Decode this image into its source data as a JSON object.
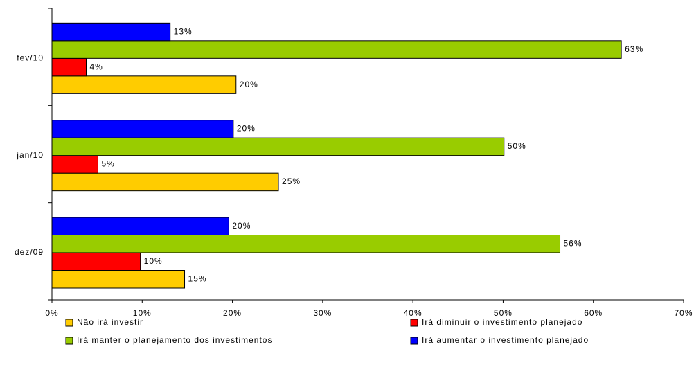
{
  "chart_data": {
    "type": "bar",
    "orientation": "horizontal",
    "categories": [
      "dez/09",
      "jan/10",
      "fev/10"
    ],
    "series": [
      {
        "name": "Não irá investir",
        "color": "#ffcc00",
        "values": [
          14.7,
          25.1,
          20.4
        ],
        "value_labels": [
          "15%",
          "25%",
          "20%"
        ]
      },
      {
        "name": "Irá diminuir o investimento planejado",
        "color": "#ff0000",
        "values": [
          9.8,
          5.1,
          3.8
        ],
        "value_labels": [
          "10%",
          "5%",
          "4%"
        ]
      },
      {
        "name": "Irá manter o planejamento dos investimentos",
        "color": "#99cc00",
        "values": [
          56.3,
          50.1,
          63.1
        ],
        "value_labels": [
          "56%",
          "50%",
          "63%"
        ]
      },
      {
        "name": "Irá aumentar o investimento planejado",
        "color": "#0000ff",
        "values": [
          19.6,
          20.1,
          13.1
        ],
        "value_labels": [
          "20%",
          "20%",
          "13%"
        ]
      }
    ],
    "xlim": [
      0,
      70
    ],
    "xticks": [
      {
        "value": 0,
        "label": "0%"
      },
      {
        "value": 10,
        "label": "10%"
      },
      {
        "value": 20,
        "label": "20%"
      },
      {
        "value": 30,
        "label": "30%"
      },
      {
        "value": 40,
        "label": "40%"
      },
      {
        "value": 50,
        "label": "50%"
      },
      {
        "value": 60,
        "label": "60%"
      },
      {
        "value": 70,
        "label": "70%"
      }
    ],
    "grid": false,
    "legend": "bottom"
  }
}
